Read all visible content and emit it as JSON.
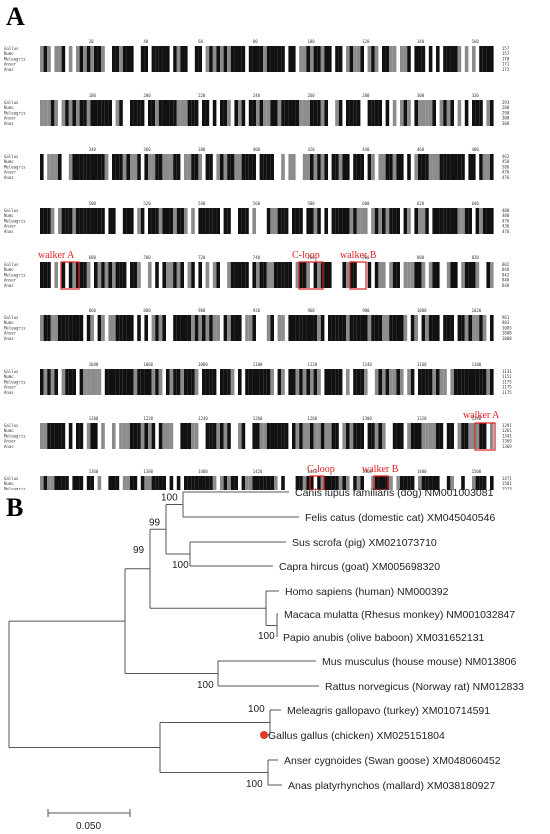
{
  "panelA": {
    "label": "A",
    "species": [
      "Gallus",
      "Numc",
      "Meleagris",
      "Anser",
      "Anas"
    ],
    "position_ticks": [
      [
        "20",
        "40",
        "60",
        "80",
        "100",
        "120",
        "140",
        "160"
      ],
      [
        "180",
        "200",
        "220",
        "240",
        "260",
        "280",
        "300",
        "320"
      ],
      [
        "340",
        "360",
        "380",
        "400",
        "420",
        "440",
        "460",
        "480"
      ],
      [
        "500",
        "520",
        "540",
        "560",
        "580",
        "600",
        "620",
        "640"
      ],
      [
        "680",
        "700",
        "720",
        "740",
        "760",
        "780",
        "800",
        "820"
      ],
      [
        "860",
        "880",
        "900",
        "920",
        "960",
        "980",
        "1000",
        "1020"
      ],
      [
        "1040",
        "1060",
        "1080",
        "1100",
        "1120",
        "1140",
        "1160",
        "1180"
      ],
      [
        "1200",
        "1220",
        "1240",
        "1260",
        "1280",
        "1300",
        "1320",
        "1340"
      ],
      [
        "1360",
        "1380",
        "1400",
        "1420",
        "1440",
        "1460",
        "1480",
        "1500"
      ],
      [
        "1520",
        "1540"
      ]
    ],
    "end_numbers": [
      [
        "157",
        "157",
        "170",
        "171",
        "172"
      ],
      [
        "293",
        "288",
        "298",
        "308",
        "308"
      ],
      [
        "462",
        "458",
        "506",
        "476",
        "476"
      ],
      [
        "480",
        "480",
        "476",
        "436",
        "476"
      ],
      [
        "802",
        "848",
        "842",
        "848",
        "848"
      ],
      [
        "961",
        "983",
        "1003",
        "1008",
        "1008"
      ],
      [
        "1131",
        "1151",
        "1175",
        "1175",
        "1175"
      ],
      [
        "1291",
        "1261",
        "1341",
        "1369",
        "1369"
      ],
      [
        "1471",
        "1501",
        "1513",
        "1519",
        "1519"
      ],
      [
        "1505",
        "1545",
        "1547",
        "1549",
        "1549"
      ]
    ],
    "annotations": {
      "walker_a": "walker A",
      "c_loop": "C-loop",
      "walker_b": "walker B"
    }
  },
  "panelB": {
    "label": "B",
    "taxa": [
      "Canis lupus familiaris (dog) NM001003081",
      "Felis catus (domestic cat) XM045040546",
      "Sus scrofa (pig) XM021073710",
      "Capra hircus (goat) XM005698320",
      "Homo sapiens (human) NM000392",
      "Macaca mulatta (Rhesus monkey) NM001032847",
      "Papio anubis (olive baboon) XM031652131",
      "Mus musculus (house mouse) NM013806",
      "Rattus norvegicus (Norway rat) NM012833",
      "Meleagris gallopavo (turkey) XM010714591",
      "Gallus gallus (chicken) XM025151804",
      "Anser cygnoides (Swan goose) XM048060452",
      "Anas platyrhynchos (mallard) XM038180927"
    ],
    "bootstrap": {
      "dog_cat": "100",
      "carnivore_ungulate": "99",
      "pig_goat": "100",
      "mammal_core": "99",
      "macaque_baboon": "100",
      "mouse_rat": "100",
      "turkey_chicken": "100",
      "goose_mallard": "100"
    },
    "highlight_color": "#e53a2a",
    "scale_bar": "0.050"
  },
  "colors": {
    "identical": "#111111",
    "similar": "#8c8c8c",
    "annotation": "#e02020"
  }
}
